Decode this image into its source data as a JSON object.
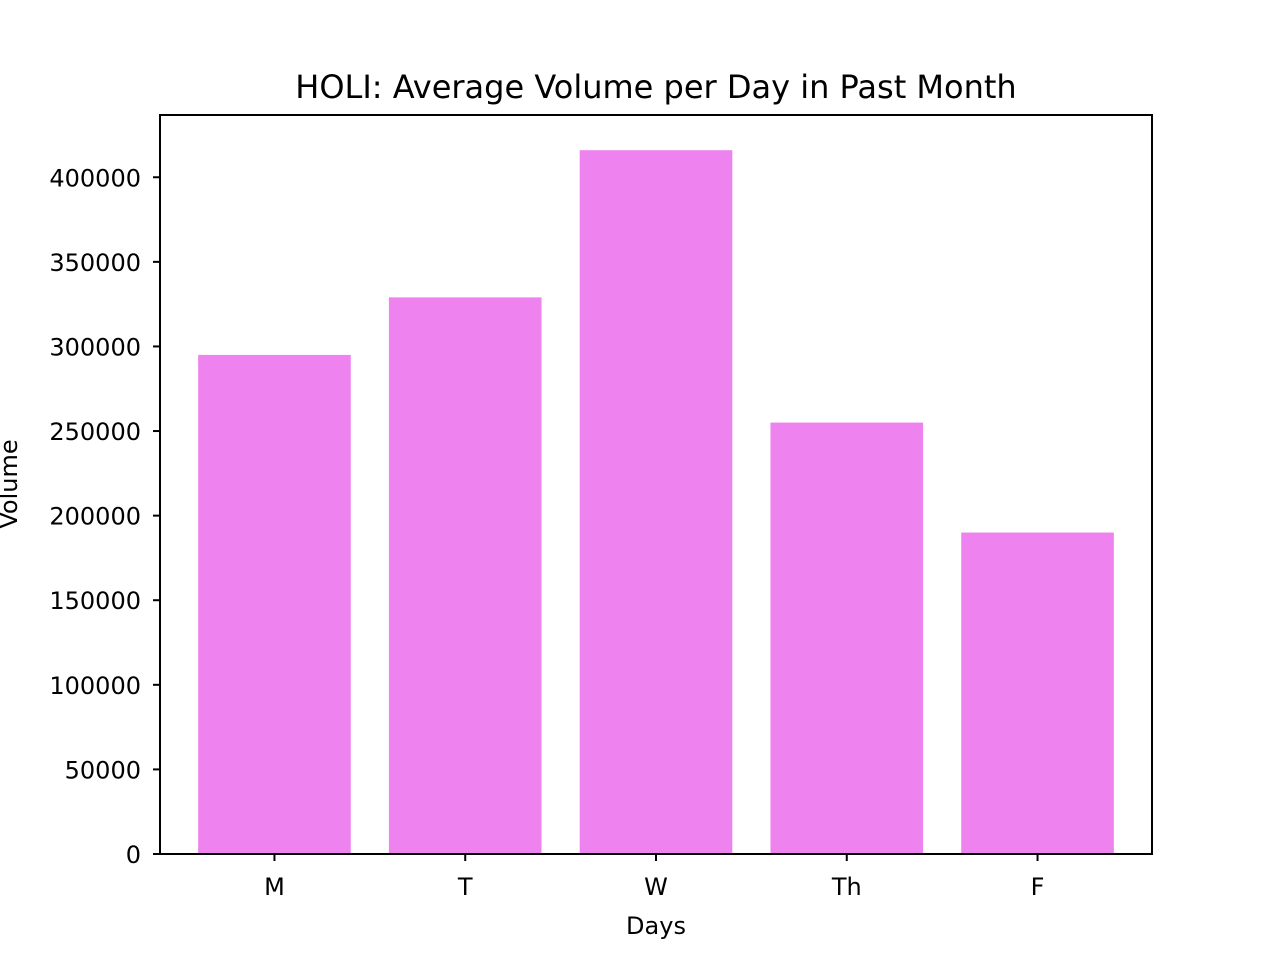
{
  "chart_data": {
    "type": "bar",
    "title": "HOLI: Average Volume per Day in Past Month",
    "xlabel": "Days",
    "ylabel": "Volume",
    "categories": [
      "M",
      "T",
      "W",
      "Th",
      "F"
    ],
    "values": [
      295000,
      329000,
      416000,
      255000,
      190000
    ],
    "ylim": [
      0,
      436800
    ],
    "yticks": [
      0,
      50000,
      100000,
      150000,
      200000,
      250000,
      300000,
      350000,
      400000
    ],
    "ytick_labels": [
      "0",
      "50000",
      "100000",
      "150000",
      "200000",
      "250000",
      "300000",
      "350000",
      "400000"
    ],
    "bar_color": "#ee82ee",
    "grid": false,
    "legend": "none"
  }
}
